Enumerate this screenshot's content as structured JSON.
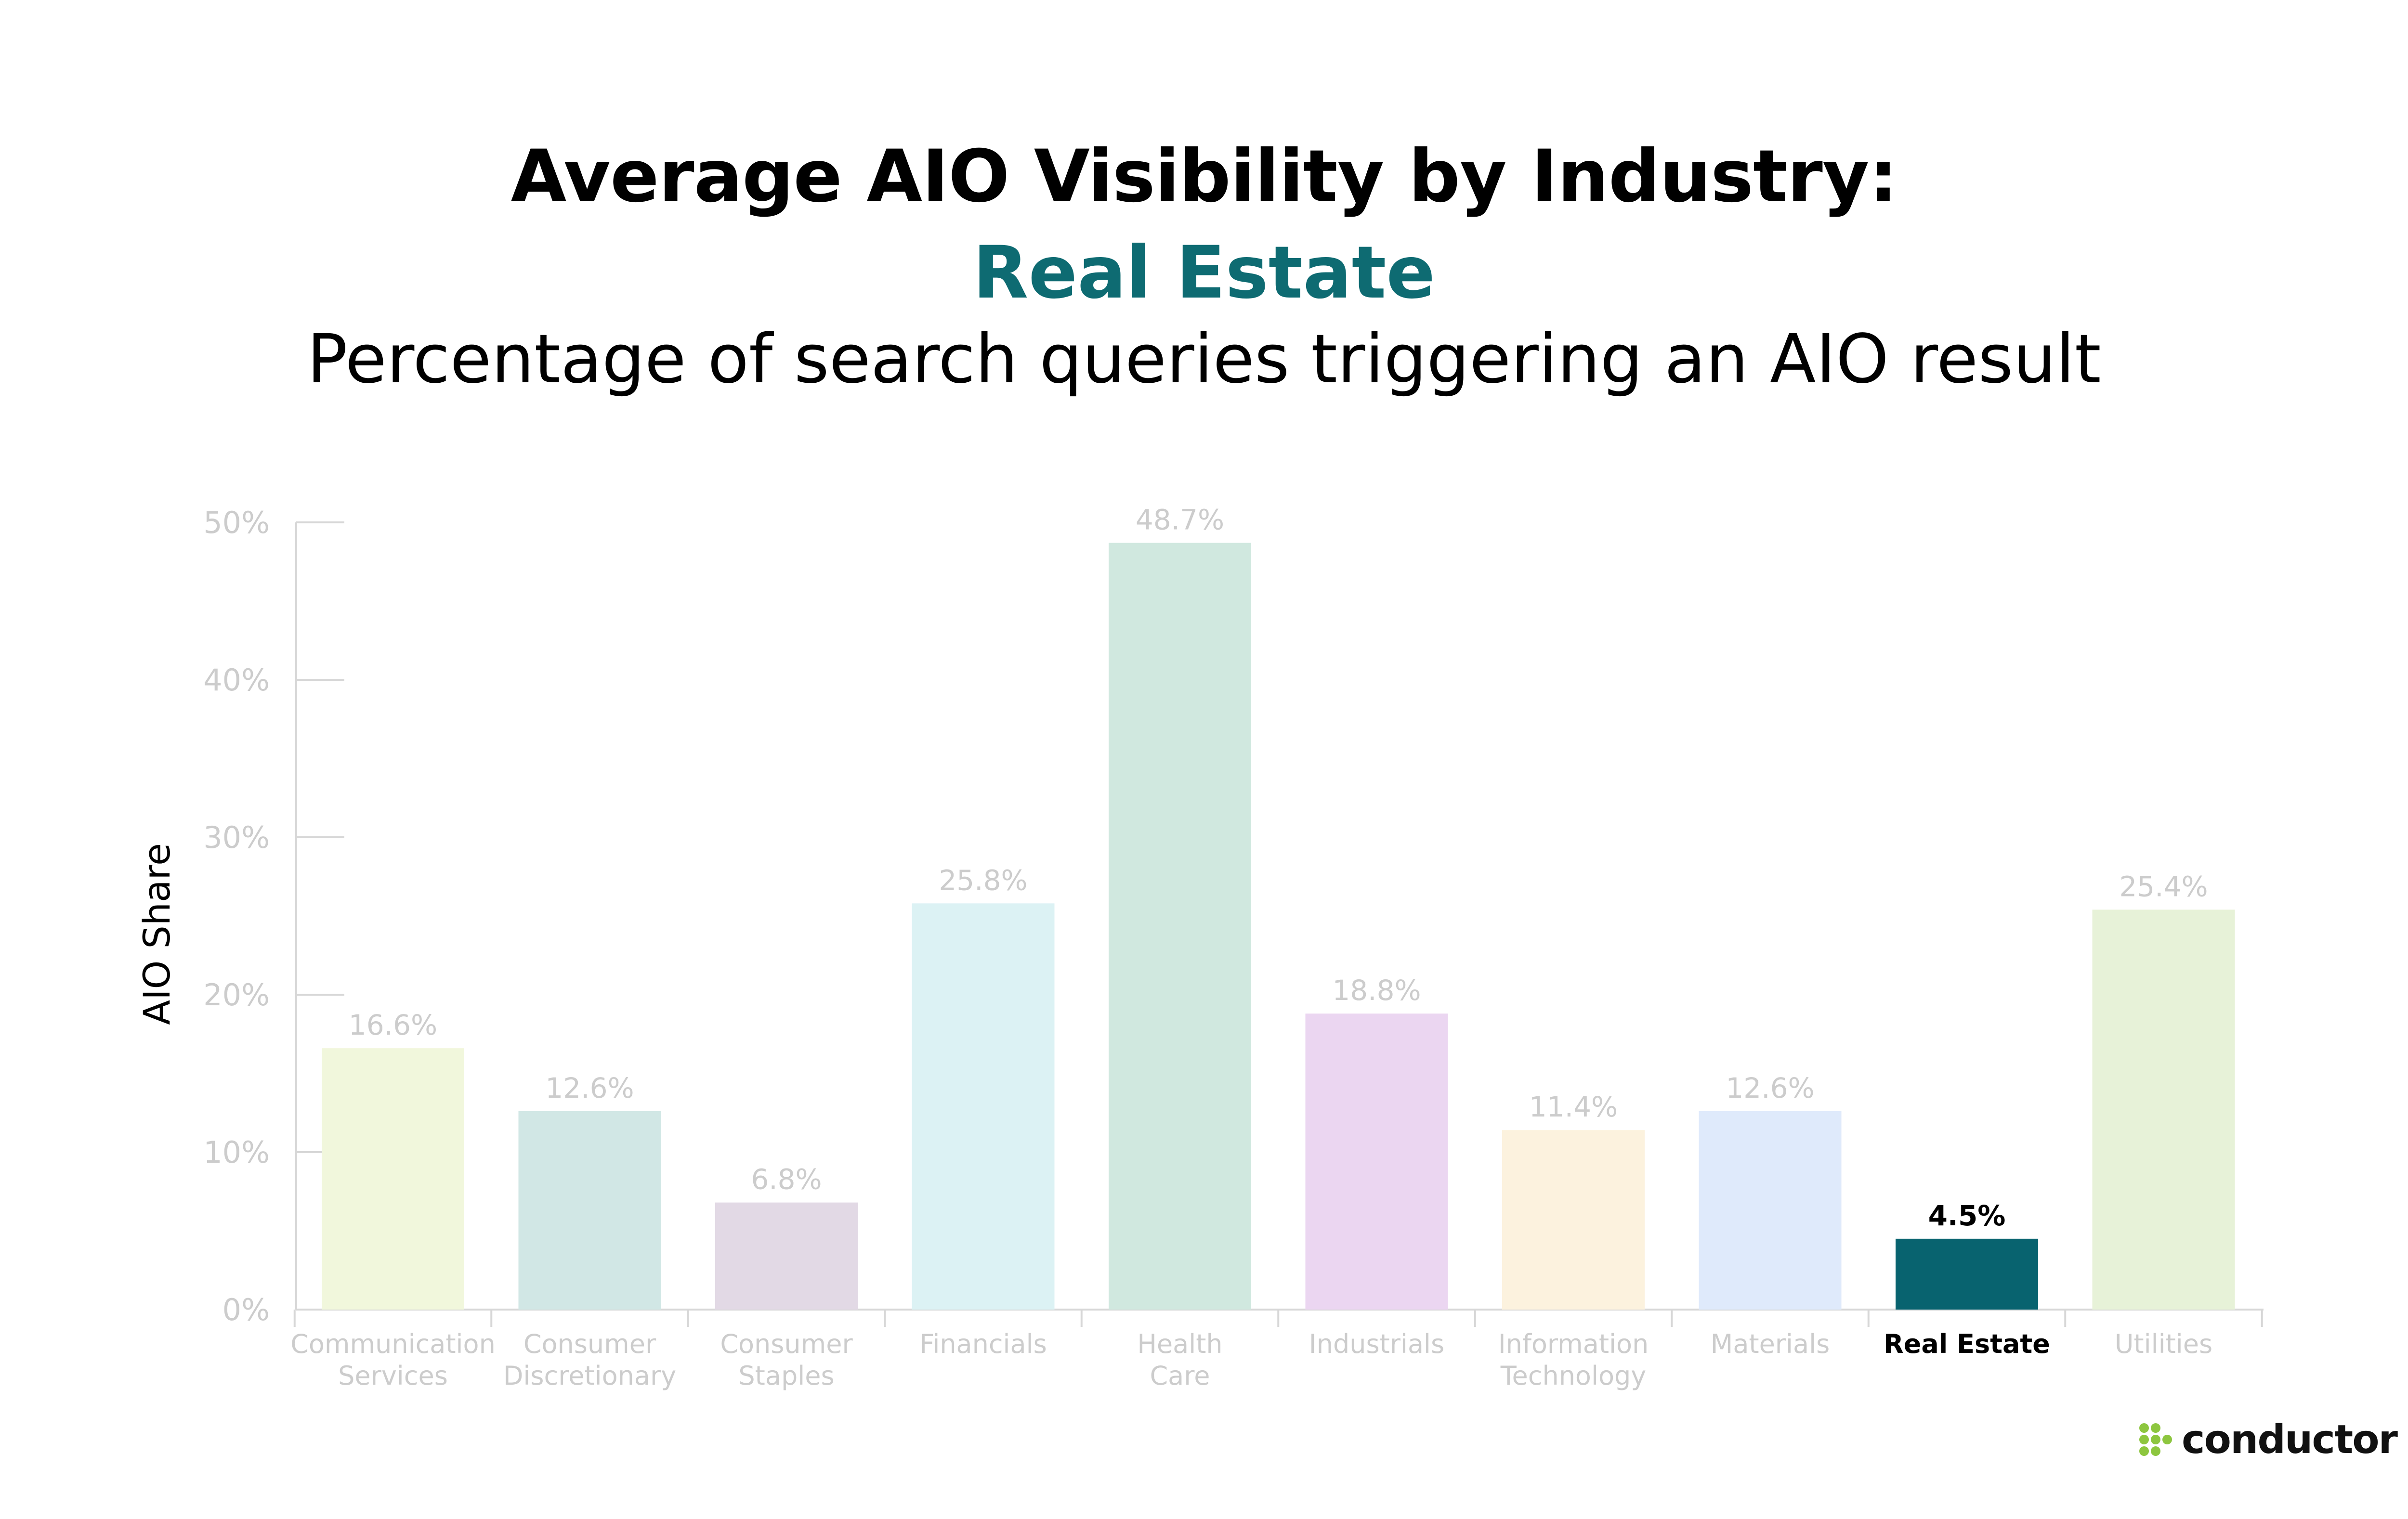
{
  "chart_data": {
    "type": "bar",
    "title": "Average AIO Visibility by Industry:",
    "highlight_title": "Real Estate",
    "subtitle": "Percentage of search queries triggering an AIO result",
    "ylabel": "AIO Share",
    "xlabel": "",
    "ylim": [
      0,
      50
    ],
    "yticks": [
      0,
      10,
      20,
      30,
      40,
      50
    ],
    "ytick_labels": [
      "0%",
      "10%",
      "20%",
      "30%",
      "40%",
      "50%"
    ],
    "grid": false,
    "legend": "none",
    "categories": [
      [
        "Communication",
        "Services"
      ],
      [
        "Consumer",
        "Discretionary"
      ],
      [
        "Consumer",
        "Staples"
      ],
      [
        "Financials"
      ],
      [
        "Health",
        "Care"
      ],
      [
        "Industrials"
      ],
      [
        "Information",
        "Technology"
      ],
      [
        "Materials"
      ],
      [
        "Real Estate"
      ],
      [
        "Utilities"
      ]
    ],
    "values": [
      16.6,
      12.6,
      6.8,
      25.8,
      48.7,
      18.8,
      11.4,
      12.6,
      4.5,
      25.4
    ],
    "value_labels": [
      "16.6%",
      "12.6%",
      "6.8%",
      "25.8%",
      "48.7%",
      "18.8%",
      "11.4%",
      "12.6%",
      "4.5%",
      "25.4%"
    ],
    "highlight_index": 8,
    "bar_colors": [
      "#f1f7dc",
      "#d1e7e5",
      "#e2d9e5",
      "#dcf2f4",
      "#d0e8df",
      "#ebd6f1",
      "#fcf2de",
      "#dfeafb",
      "#08636f",
      "#e7f2d8"
    ],
    "muted_text_color": "#cccccc",
    "highlight_text_color": "#000000"
  },
  "brand": {
    "name": "conductor",
    "color": "#8dc63f"
  }
}
